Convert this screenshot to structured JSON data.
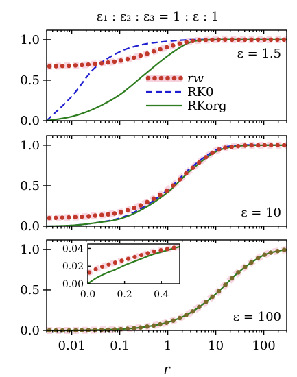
{
  "figure": {
    "title": "ε₁ : ε₂ : ε₃ = 1 : ε : 1",
    "xlabel": "r",
    "x_tick_labels": [
      "0.01",
      "0.1",
      "1",
      "10",
      "100"
    ]
  },
  "colors": {
    "rw_dot": "#c0392b",
    "rw_shadow": "#f5c6d6",
    "rk0": "#1f1fd1",
    "rkorg": "#2e7d1f",
    "dot_over_line": "#7a6a2a"
  },
  "legend": {
    "items": [
      {
        "label": "rw",
        "style": "dots"
      },
      {
        "label": "RK0",
        "style": "dashed"
      },
      {
        "label": "RKorg",
        "style": "solid"
      }
    ]
  },
  "chart_data": [
    {
      "type": "line",
      "panel_label": "ε = 1.5",
      "x_scale": "log",
      "xlim": [
        0.003,
        300
      ],
      "ylim": [
        0,
        1.05
      ],
      "y_ticks": [
        "0.0",
        "0.5",
        "1.0"
      ],
      "grid": false,
      "legend_placement": "center-right",
      "x": [
        0.003,
        0.01,
        0.03,
        0.1,
        0.3,
        1,
        3,
        10,
        30,
        100,
        300
      ],
      "series": [
        {
          "name": "rw",
          "values": [
            0.67,
            0.68,
            0.7,
            0.74,
            0.81,
            0.91,
            0.98,
            1.0,
            1.0,
            1.0,
            1.0
          ]
        },
        {
          "name": "RK0",
          "values": [
            0.0,
            0.3,
            0.65,
            0.85,
            0.94,
            0.98,
            1.0,
            1.0,
            1.0,
            1.0,
            1.0
          ]
        },
        {
          "name": "RKorg",
          "values": [
            0.0,
            0.05,
            0.15,
            0.32,
            0.55,
            0.8,
            0.97,
            1.0,
            1.0,
            1.0,
            1.0
          ]
        }
      ]
    },
    {
      "type": "line",
      "panel_label": "ε = 10",
      "x_scale": "log",
      "xlim": [
        0.003,
        300
      ],
      "ylim": [
        0,
        1.05
      ],
      "y_ticks": [
        "0.0",
        "0.5",
        "1.0"
      ],
      "grid": false,
      "x": [
        0.003,
        0.01,
        0.03,
        0.1,
        0.3,
        1,
        3,
        10,
        30,
        100,
        300
      ],
      "series": [
        {
          "name": "rw",
          "values": [
            0.1,
            0.11,
            0.13,
            0.17,
            0.27,
            0.45,
            0.7,
            0.93,
            0.99,
            1.0,
            1.0
          ]
        },
        {
          "name": "RK0",
          "values": [
            0.0,
            0.01,
            0.04,
            0.1,
            0.23,
            0.45,
            0.72,
            0.94,
            1.0,
            1.0,
            1.0
          ]
        },
        {
          "name": "RKorg",
          "values": [
            0.0,
            0.01,
            0.04,
            0.09,
            0.21,
            0.42,
            0.69,
            0.92,
            0.99,
            1.0,
            1.0
          ]
        }
      ]
    },
    {
      "type": "line",
      "panel_label": "ε = 100",
      "x_scale": "log",
      "xlim": [
        0.003,
        300
      ],
      "ylim": [
        0,
        1.05
      ],
      "y_ticks": [
        "0.0",
        "0.5",
        "1.0"
      ],
      "grid": false,
      "x": [
        0.003,
        0.01,
        0.03,
        0.1,
        0.3,
        1,
        3,
        10,
        30,
        100,
        300
      ],
      "series": [
        {
          "name": "rw",
          "values": [
            0.0,
            0.0,
            0.005,
            0.015,
            0.04,
            0.1,
            0.22,
            0.45,
            0.72,
            0.93,
            1.0
          ]
        },
        {
          "name": "RKorg",
          "values": [
            0.0,
            0.0,
            0.005,
            0.015,
            0.04,
            0.1,
            0.22,
            0.45,
            0.72,
            0.93,
            1.0
          ]
        }
      ],
      "inset": {
        "x_scale": "linear",
        "xlim": [
          0,
          0.5
        ],
        "ylim": [
          0,
          0.045
        ],
        "x_ticks": [
          "0.0",
          "0.2",
          "0.4"
        ],
        "y_ticks": [
          "0.00",
          "0.02",
          "0.04"
        ],
        "x": [
          0,
          0.05,
          0.1,
          0.15,
          0.2,
          0.25,
          0.3,
          0.35,
          0.4,
          0.45,
          0.5
        ],
        "series": [
          {
            "name": "rw",
            "values": [
              0.012,
              0.017,
              0.021,
              0.024,
              0.027,
              0.03,
              0.033,
              0.036,
              0.038,
              0.04,
              0.042
            ]
          },
          {
            "name": "RKorg",
            "values": [
              0.0,
              0.007,
              0.012,
              0.016,
              0.021,
              0.025,
              0.029,
              0.033,
              0.036,
              0.039,
              0.042
            ]
          }
        ]
      }
    }
  ]
}
